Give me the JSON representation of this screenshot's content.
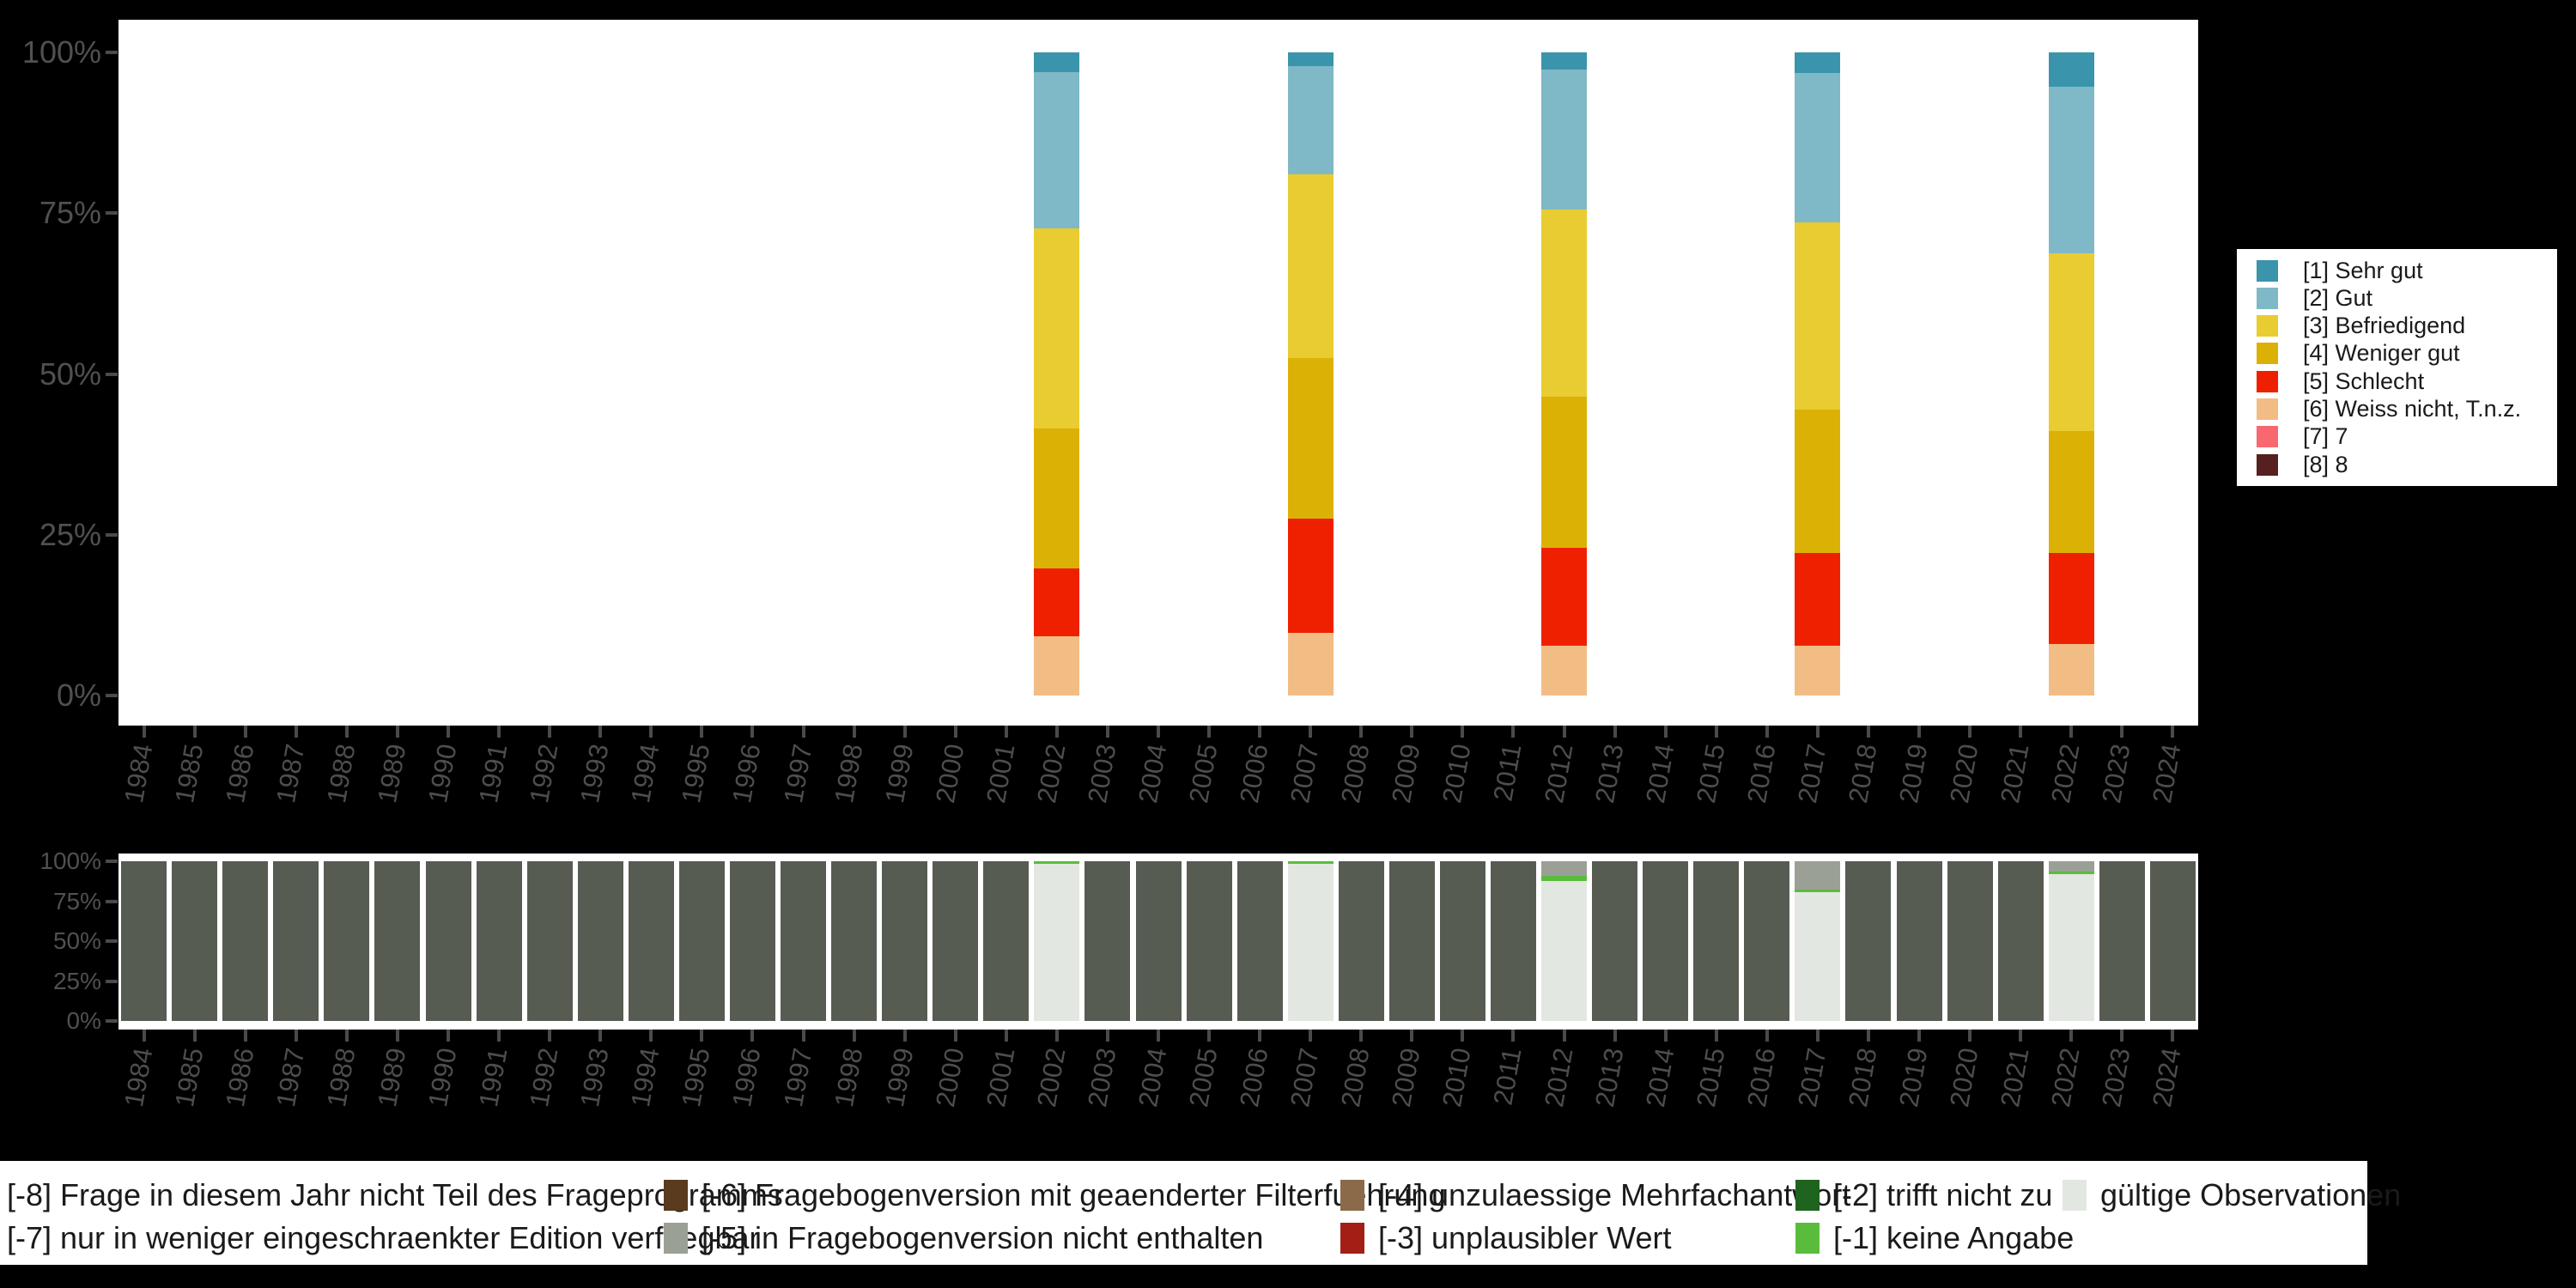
{
  "colors": {
    "background": "#000000",
    "panel": "#ffffff",
    "axis_text": "#4d4d4d",
    "tick": "#4a4a4a"
  },
  "chart_data": [
    {
      "type": "bar",
      "stacked": true,
      "title": "",
      "xlabel": "",
      "ylabel": "",
      "ylim": [
        0,
        100
      ],
      "grid": false,
      "legend_position": "right",
      "y_axis": {
        "ticks": [
          "100%",
          "75%",
          "50%",
          "25%",
          "0%"
        ],
        "tick_values": [
          100,
          75,
          50,
          25,
          0
        ]
      },
      "x_axis": {
        "years": [
          "1984",
          "1985",
          "1986",
          "1987",
          "1988",
          "1989",
          "1990",
          "1991",
          "1992",
          "1993",
          "1994",
          "1995",
          "1996",
          "1997",
          "1998",
          "1999",
          "2000",
          "2001",
          "2002",
          "2003",
          "2004",
          "2005",
          "2006",
          "2007",
          "2008",
          "2009",
          "2010",
          "2011",
          "2012",
          "2013",
          "2014",
          "2015",
          "2016",
          "2017",
          "2018",
          "2019",
          "2020",
          "2021",
          "2022",
          "2023",
          "2024"
        ]
      },
      "categories": [
        {
          "code": "1",
          "label": "[1] Sehr gut",
          "color": "#3a94ab"
        },
        {
          "code": "2",
          "label": "[2] Gut",
          "color": "#7fb8c6"
        },
        {
          "code": "3",
          "label": "[3] Befriedigend",
          "color": "#e9cc31"
        },
        {
          "code": "4",
          "label": "[4] Weniger gut",
          "color": "#dcb105"
        },
        {
          "code": "5",
          "label": "[5] Schlecht",
          "color": "#ef2000"
        },
        {
          "code": "6",
          "label": "[6] Weiss nicht, T.n.z.",
          "color": "#f2bd85"
        },
        {
          "code": "7",
          "label": "[7] 7",
          "color": "#f8696f"
        },
        {
          "code": "8",
          "label": "[8] 8",
          "color": "#55201f"
        }
      ],
      "series": {
        "2002": [
          3.1,
          24.3,
          31.1,
          21.7,
          10.6,
          9.2,
          0,
          0
        ],
        "2007": [
          2.2,
          16.7,
          28.6,
          25.0,
          17.8,
          9.7,
          0,
          0
        ],
        "2012": [
          2.7,
          21.7,
          29.1,
          23.6,
          15.1,
          7.8,
          0,
          0
        ],
        "2017": [
          3.2,
          23.3,
          29.0,
          22.3,
          14.5,
          7.7,
          0,
          0
        ],
        "2022": [
          5.4,
          25.8,
          27.7,
          19.0,
          14.1,
          8.0,
          0,
          0
        ]
      }
    },
    {
      "type": "bar",
      "stacked": true,
      "title": "",
      "xlabel": "",
      "ylabel": "",
      "ylim": [
        0,
        100
      ],
      "grid": false,
      "legend_position": "bottom",
      "y_axis": {
        "ticks": [
          "100%",
          "75%",
          "50%",
          "25%",
          "0%"
        ],
        "tick_values": [
          100,
          75,
          50,
          25,
          0
        ]
      },
      "x_axis": {
        "years": [
          "1984",
          "1985",
          "1986",
          "1987",
          "1988",
          "1989",
          "1990",
          "1991",
          "1992",
          "1993",
          "1994",
          "1995",
          "1996",
          "1997",
          "1998",
          "1999",
          "2000",
          "2001",
          "2002",
          "2003",
          "2004",
          "2005",
          "2006",
          "2007",
          "2008",
          "2009",
          "2010",
          "2011",
          "2012",
          "2013",
          "2014",
          "2015",
          "2016",
          "2017",
          "2018",
          "2019",
          "2020",
          "2021",
          "2022",
          "2023",
          "2024"
        ]
      },
      "categories": [
        {
          "code": "-8",
          "label": "[-8] Frage in diesem Jahr nicht Teil des Frageprogramms",
          "color": "#565c52",
          "swatch_visible": false
        },
        {
          "code": "-7",
          "label": "[-7] nur in weniger eingeschraenkter Edition verfuegbar",
          "color": null,
          "swatch_visible": false
        },
        {
          "code": "-6",
          "label": "[-6] Fragebogenversion mit geaenderter Filterfuehrung",
          "color": "#5a3b1e",
          "swatch_visible": true
        },
        {
          "code": "-5",
          "label": "[-5] in Fragebogenversion nicht enthalten",
          "color": "#9aa096",
          "swatch_visible": true
        },
        {
          "code": "-4",
          "label": "[-4] unzulaessige Mehrfachantwort",
          "color": "#8a6a48",
          "swatch_visible": true
        },
        {
          "code": "-3",
          "label": "[-3] unplausibler Wert",
          "color": "#a31f16",
          "swatch_visible": true
        },
        {
          "code": "-2",
          "label": "[-2] trifft nicht zu",
          "color": "#1e641e",
          "swatch_visible": true
        },
        {
          "code": "-1",
          "label": "[-1] keine Angabe",
          "color": "#5abc3c",
          "swatch_visible": true
        },
        {
          "code": "valid",
          "label": "gültige Observationen",
          "color": "#e3e7e1",
          "swatch_visible": true
        }
      ],
      "default_values": [
        100,
        0,
        0,
        0,
        0,
        0,
        0,
        0,
        0
      ],
      "series": {
        "2002": [
          0,
          0,
          0,
          0,
          0,
          0,
          0,
          1.5,
          98.5
        ],
        "2007": [
          0,
          0,
          0,
          0,
          0,
          0,
          0,
          1.5,
          98.5
        ],
        "2012": [
          0,
          0,
          0,
          9.1,
          0,
          0,
          0,
          3.2,
          87.7
        ],
        "2017": [
          0,
          0,
          0,
          17.7,
          0,
          0,
          0,
          1.5,
          80.8
        ],
        "2022": [
          0,
          0,
          0,
          6.3,
          0,
          0,
          0,
          1.6,
          92.1
        ]
      }
    }
  ],
  "legend_bottom": {
    "rows": [
      [
        "-8",
        "-6",
        "-4",
        "-2",
        "valid"
      ],
      [
        "-7",
        "-5",
        "-3",
        "-1"
      ]
    ]
  }
}
